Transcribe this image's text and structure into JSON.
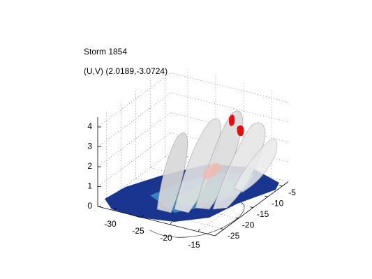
{
  "chart_data": {
    "type": "isosurface3d",
    "title": "Storm 1854",
    "subtitle": "(U,V) (2.0189,-3.0724)",
    "xlim": [
      -33,
      -12
    ],
    "ylim": [
      -28,
      -3
    ],
    "zlim": [
      0,
      4.5
    ],
    "xticks": [
      -30,
      -25,
      -20,
      -15
    ],
    "yticks": [
      -25,
      -20,
      -15,
      -10,
      -5
    ],
    "zticks": [
      0,
      1,
      2,
      3,
      4
    ],
    "grid": true
  }
}
